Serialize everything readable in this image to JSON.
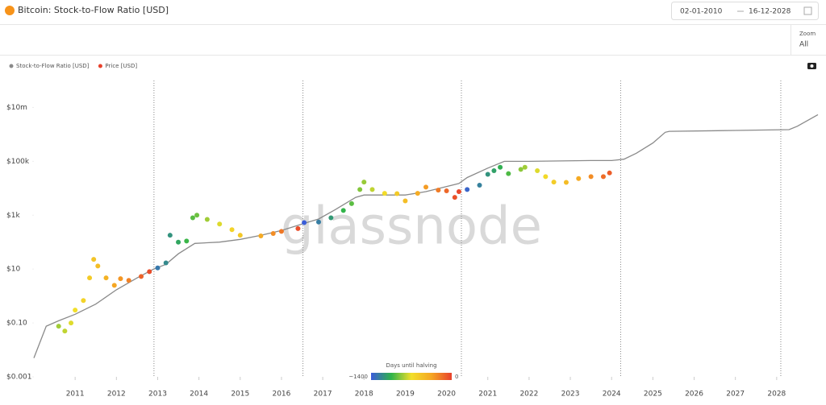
{
  "header": {
    "title": "Bitcoin: Stock-to-Flow Ratio [USD]",
    "date_from": "02-01-2010",
    "date_to": "16-12-2028",
    "zoom_label": "Zoom",
    "zoom_value": "All"
  },
  "chart_data": {
    "type": "line",
    "watermark": "glassnode",
    "log_y": true,
    "xlim": [
      2010,
      2029
    ],
    "xticks": [
      2011,
      2012,
      2013,
      2014,
      2015,
      2016,
      2017,
      2018,
      2019,
      2020,
      2021,
      2022,
      2023,
      2024,
      2025,
      2026,
      2027,
      2028
    ],
    "ylim": [
      0.001,
      100000000
    ],
    "yticks": [
      {
        "value": 0.001,
        "label": "$0.001"
      },
      {
        "value": 0.1,
        "label": "$0.10"
      },
      {
        "value": 10,
        "label": "$10"
      },
      {
        "value": 1000,
        "label": "$1k"
      },
      {
        "value": 100000,
        "label": "$100k"
      },
      {
        "value": 10000000,
        "label": "$10m"
      }
    ],
    "halvings": [
      2012.91,
      2016.52,
      2020.36,
      2024.22,
      2028.1
    ],
    "colorbar": {
      "title": "Days until halving",
      "ticks": [
        {
          "value": 1400,
          "label": "~1400"
        },
        0
      ],
      "colors": [
        "#3b5bdb",
        "#2fb34a",
        "#f2df2a",
        "#f5a623",
        "#e8412c"
      ]
    },
    "series": [
      {
        "name": "Stock-to-Flow Ratio [USD]",
        "type": "line",
        "color": "#8a8a8a",
        "x": [
          2010.0,
          2010.3,
          2010.6,
          2011.0,
          2011.5,
          2012.0,
          2012.5,
          2012.9,
          2013.2,
          2013.5,
          2013.9,
          2014.5,
          2015.0,
          2015.5,
          2016.0,
          2016.5,
          2016.9,
          2017.3,
          2017.8,
          2018.0,
          2019.0,
          2019.5,
          2020.3,
          2020.5,
          2021.0,
          2021.4,
          2022.0,
          2023.5,
          2024.0,
          2024.3,
          2024.6,
          2025.0,
          2025.3,
          2025.4,
          2027.0,
          2028.3,
          2028.5,
          2029.0
        ],
        "values": [
          0.005,
          0.076,
          0.12,
          0.21,
          0.5,
          1.7,
          4.7,
          10,
          15,
          37,
          90,
          100,
          127,
          180,
          270,
          470,
          720,
          1600,
          4600,
          5600,
          5600,
          7500,
          15000,
          25000,
          56000,
          100000,
          100000,
          107000,
          107000,
          120000,
          200000,
          480000,
          1200000,
          1300000,
          1400000,
          1500000,
          2000000,
          5400000
        ]
      },
      {
        "name": "Price [USD]",
        "type": "scatter",
        "color": "#e8412c",
        "x": [
          2010.6,
          2010.75,
          2010.9,
          2011.0,
          2011.2,
          2011.35,
          2011.45,
          2011.55,
          2011.75,
          2011.95,
          2012.1,
          2012.3,
          2012.6,
          2012.8,
          2013.0,
          2013.2,
          2013.3,
          2013.5,
          2013.7,
          2013.85,
          2013.95,
          2014.2,
          2014.5,
          2014.8,
          2015.0,
          2015.5,
          2015.8,
          2016.0,
          2016.4,
          2016.55,
          2016.9,
          2017.2,
          2017.5,
          2017.7,
          2017.9,
          2018.0,
          2018.2,
          2018.5,
          2018.8,
          2019.0,
          2019.3,
          2019.5,
          2019.8,
          2020.0,
          2020.2,
          2020.3,
          2020.5,
          2020.8,
          2021.0,
          2021.15,
          2021.3,
          2021.5,
          2021.8,
          2021.9,
          2022.2,
          2022.4,
          2022.6,
          2022.9,
          2023.2,
          2023.5,
          2023.8,
          2023.95
        ],
        "values": [
          0.076,
          0.05,
          0.1,
          0.3,
          0.68,
          4.7,
          23,
          13,
          4.7,
          2.5,
          4.4,
          3.8,
          5.3,
          8,
          11,
          17,
          180,
          100,
          110,
          800,
          1000,
          700,
          470,
          290,
          180,
          170,
          210,
          250,
          320,
          530,
          560,
          800,
          1500,
          2700,
          9000,
          17000,
          9000,
          6500,
          6300,
          3400,
          6500,
          11000,
          8500,
          8000,
          4600,
          7500,
          9000,
          13000,
          33000,
          45000,
          60000,
          35000,
          50000,
          60000,
          45000,
          27000,
          17000,
          16500,
          23000,
          27000,
          27000,
          37000
        ]
      }
    ]
  }
}
